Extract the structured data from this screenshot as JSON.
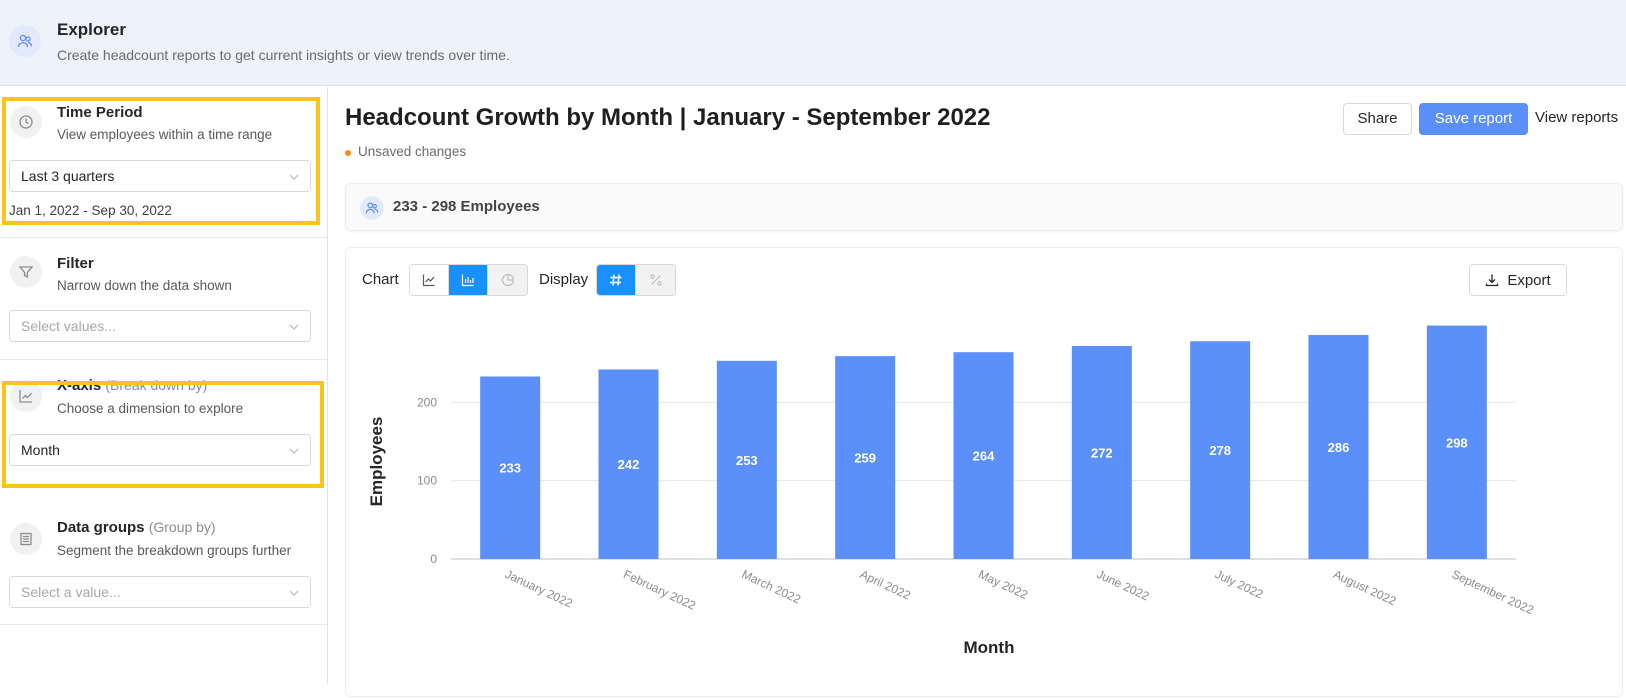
{
  "header": {
    "title": "Explorer",
    "subtitle": "Create headcount reports to get current insights or view trends over time.",
    "icon": "people-icon"
  },
  "sidebar": {
    "time_period": {
      "title": "Time Period",
      "subtitle": "View employees within a time range",
      "value": "Last 3 quarters",
      "date_range": "Jan 1, 2022 - Sep 30, 2022",
      "icon": "clock-icon"
    },
    "filter": {
      "title": "Filter",
      "subtitle": "Narrow down the data shown",
      "placeholder": "Select values...",
      "icon": "funnel-icon"
    },
    "x_axis": {
      "title": "X-axis",
      "title_hint": "(Break down by)",
      "subtitle": "Choose a dimension to explore",
      "value": "Month",
      "icon": "line-chart-icon"
    },
    "data_groups": {
      "title": "Data groups",
      "title_hint": "(Group by)",
      "subtitle": "Segment the breakdown groups further",
      "placeholder": "Select a value...",
      "icon": "list-icon"
    },
    "highlight_color": "#fcc419"
  },
  "report": {
    "title": "Headcount Growth by Month | January - September 2022",
    "unsaved": "Unsaved changes",
    "share_label": "Share",
    "save_label": "Save report",
    "view_label": "View reports",
    "summary": "233 - 298 Employees",
    "chart_label": "Chart",
    "display_label": "Display",
    "export_label": "Export",
    "accent": "#5b8ff9",
    "toggle_active": "#1890ff"
  },
  "chart_data": {
    "type": "bar",
    "categories": [
      "January 2022",
      "February 2022",
      "March 2022",
      "April 2022",
      "May 2022",
      "June 2022",
      "July 2022",
      "August 2022",
      "September 2022"
    ],
    "values": [
      233,
      242,
      253,
      259,
      264,
      272,
      278,
      286,
      298
    ],
    "xlabel": "Month",
    "ylabel": "Employees",
    "ylim": [
      0,
      300
    ],
    "yticks": [
      0,
      100,
      200
    ],
    "grid": true,
    "bar_color": "#5b8ff9",
    "data_labels": true
  }
}
